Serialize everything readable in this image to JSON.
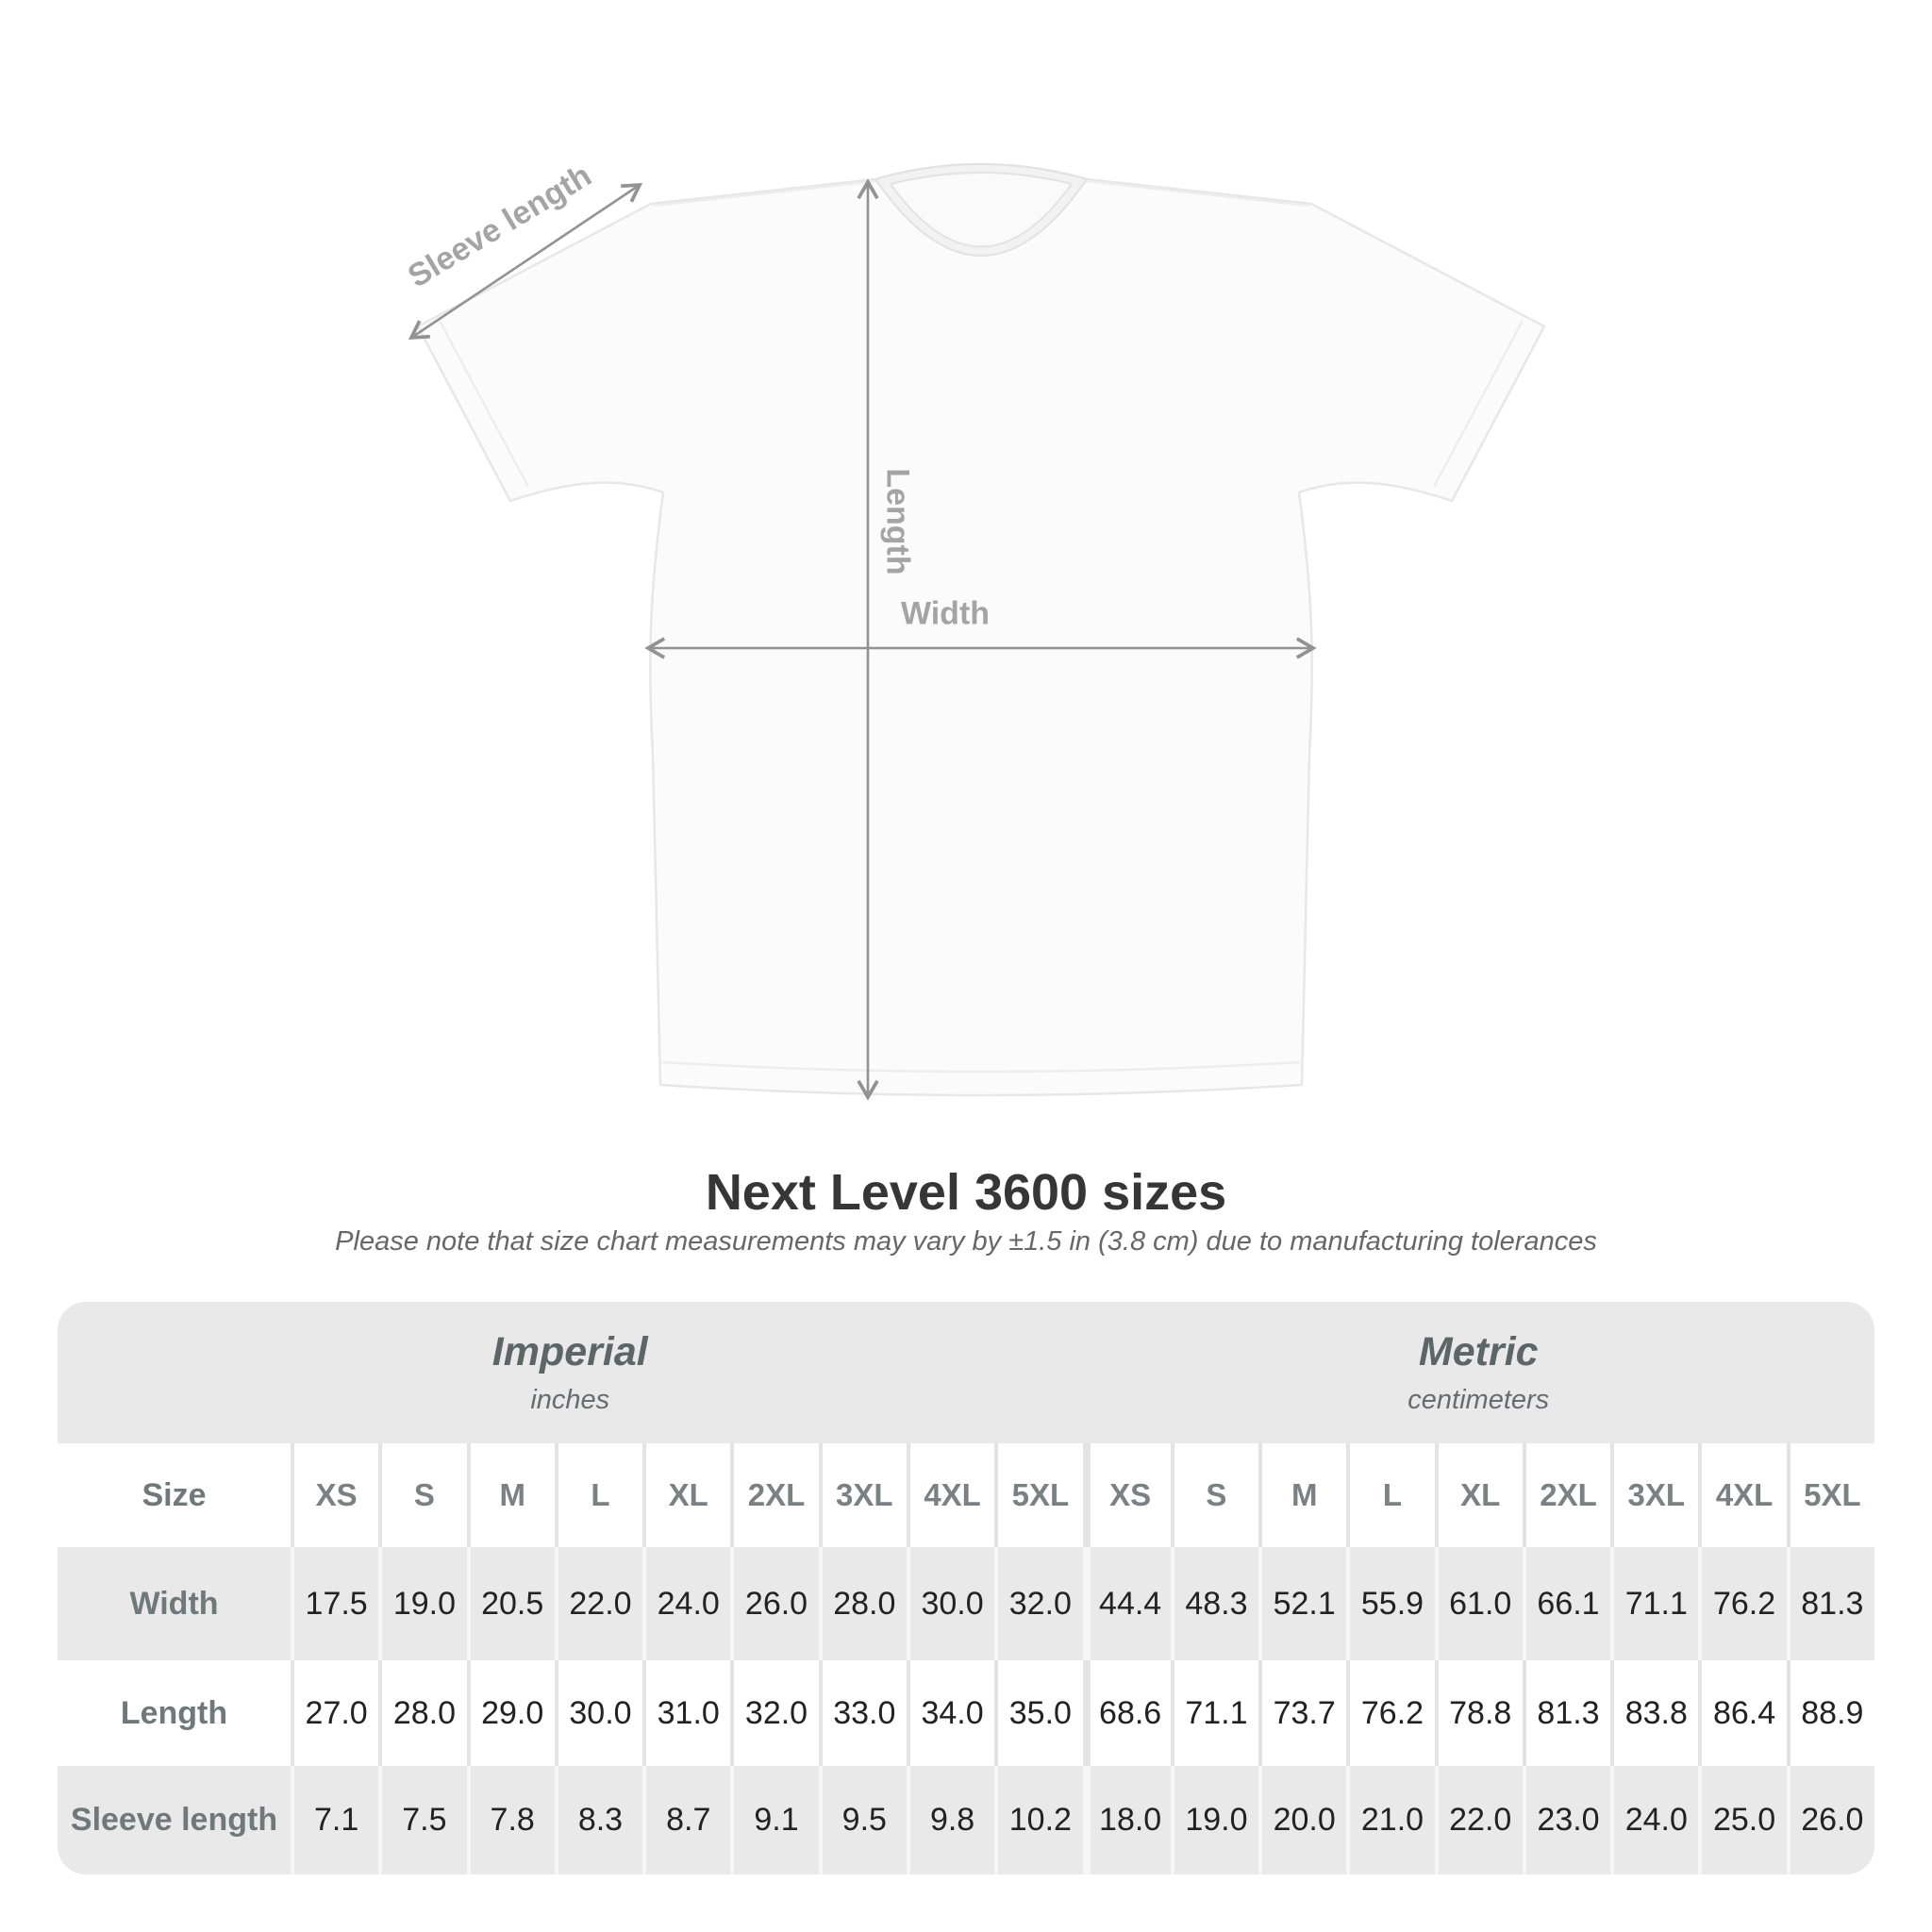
{
  "diagram": {
    "sleeve_label": "Sleeve length",
    "length_label": "Length",
    "width_label": "Width"
  },
  "title": "Next Level 3600 sizes",
  "subtitle": "Please note that size chart measurements may vary by ±1.5 in (3.8 cm) due to manufacturing tolerances",
  "chart_data": {
    "type": "table",
    "title": "Next Level 3600 sizes",
    "corner_label": "Size",
    "column_groups": [
      {
        "label": "Imperial",
        "sublabel": "inches"
      },
      {
        "label": "Metric",
        "sublabel": "centimeters"
      }
    ],
    "columns": [
      "XS",
      "S",
      "M",
      "L",
      "XL",
      "2XL",
      "3XL",
      "4XL",
      "5XL"
    ],
    "rows": [
      {
        "label": "Width",
        "imperial": [
          "17.5",
          "19.0",
          "20.5",
          "22.0",
          "24.0",
          "26.0",
          "28.0",
          "30.0",
          "32.0"
        ],
        "metric": [
          "44.4",
          "48.3",
          "52.1",
          "55.9",
          "61.0",
          "66.1",
          "71.1",
          "76.2",
          "81.3"
        ]
      },
      {
        "label": "Length",
        "imperial": [
          "27.0",
          "28.0",
          "29.0",
          "30.0",
          "31.0",
          "32.0",
          "33.0",
          "34.0",
          "35.0"
        ],
        "metric": [
          "68.6",
          "71.1",
          "73.7",
          "76.2",
          "78.8",
          "81.3",
          "83.8",
          "86.4",
          "88.9"
        ]
      },
      {
        "label": "Sleeve length",
        "imperial": [
          "7.1",
          "7.5",
          "7.8",
          "8.3",
          "8.7",
          "9.1",
          "9.5",
          "9.8",
          "10.2"
        ],
        "metric": [
          "18.0",
          "19.0",
          "20.0",
          "21.0",
          "22.0",
          "23.0",
          "24.0",
          "25.0",
          "26.0"
        ]
      }
    ]
  },
  "colors": {
    "annotation_gray": "#929292",
    "annotation_label": "#a4a4a4",
    "title_text": "#363636",
    "subtitle_text": "#676767",
    "table_background": "#e9e9e9",
    "group_header_text": "#5c6568",
    "row_label_text": "#6f787b",
    "value_text": "#222222",
    "shirt_fill": "#fbfbfb",
    "shirt_outline": "#e7e7e7"
  }
}
